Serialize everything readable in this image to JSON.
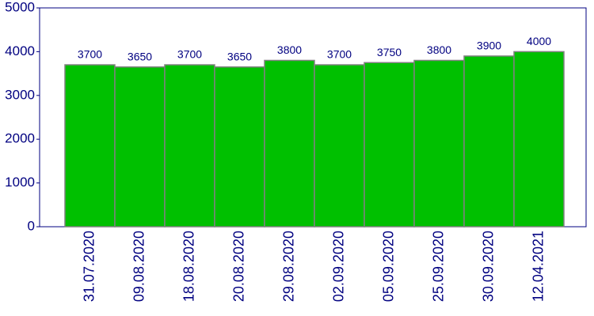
{
  "chart_data": {
    "type": "bar",
    "categories": [
      "31.07.2020",
      "09.08.2020",
      "18.08.2020",
      "20.08.2020",
      "29.08.2020",
      "02.09.2020",
      "05.09.2020",
      "25.09.2020",
      "30.09.2020",
      "12.04.2021"
    ],
    "values": [
      3700,
      3650,
      3700,
      3650,
      3800,
      3700,
      3750,
      3800,
      3900,
      4000
    ],
    "color": "#00c000",
    "ylim": [
      0,
      5000
    ],
    "yticks": [
      0,
      1000,
      2000,
      3000,
      4000,
      5000
    ],
    "grid": false
  }
}
